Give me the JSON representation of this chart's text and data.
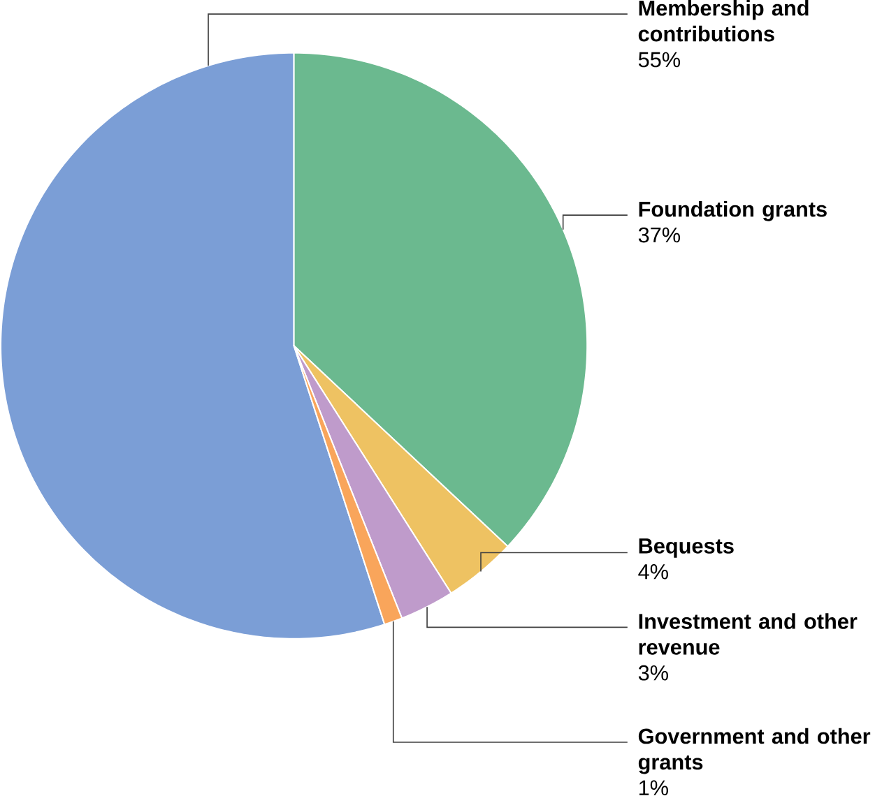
{
  "chart_data": {
    "type": "pie",
    "categories": [
      "Membership and contributions",
      "Foundation grants",
      "Bequests",
      "Investment and other revenue",
      "Government and other grants"
    ],
    "values": [
      55,
      37,
      4,
      3,
      1
    ],
    "value_labels": [
      "55%",
      "37%",
      "4%",
      "3%",
      "1%"
    ],
    "colors": [
      "#7b9ed6",
      "#6bb98f",
      "#eec262",
      "#bf9bcb",
      "#f9a55b"
    ]
  }
}
